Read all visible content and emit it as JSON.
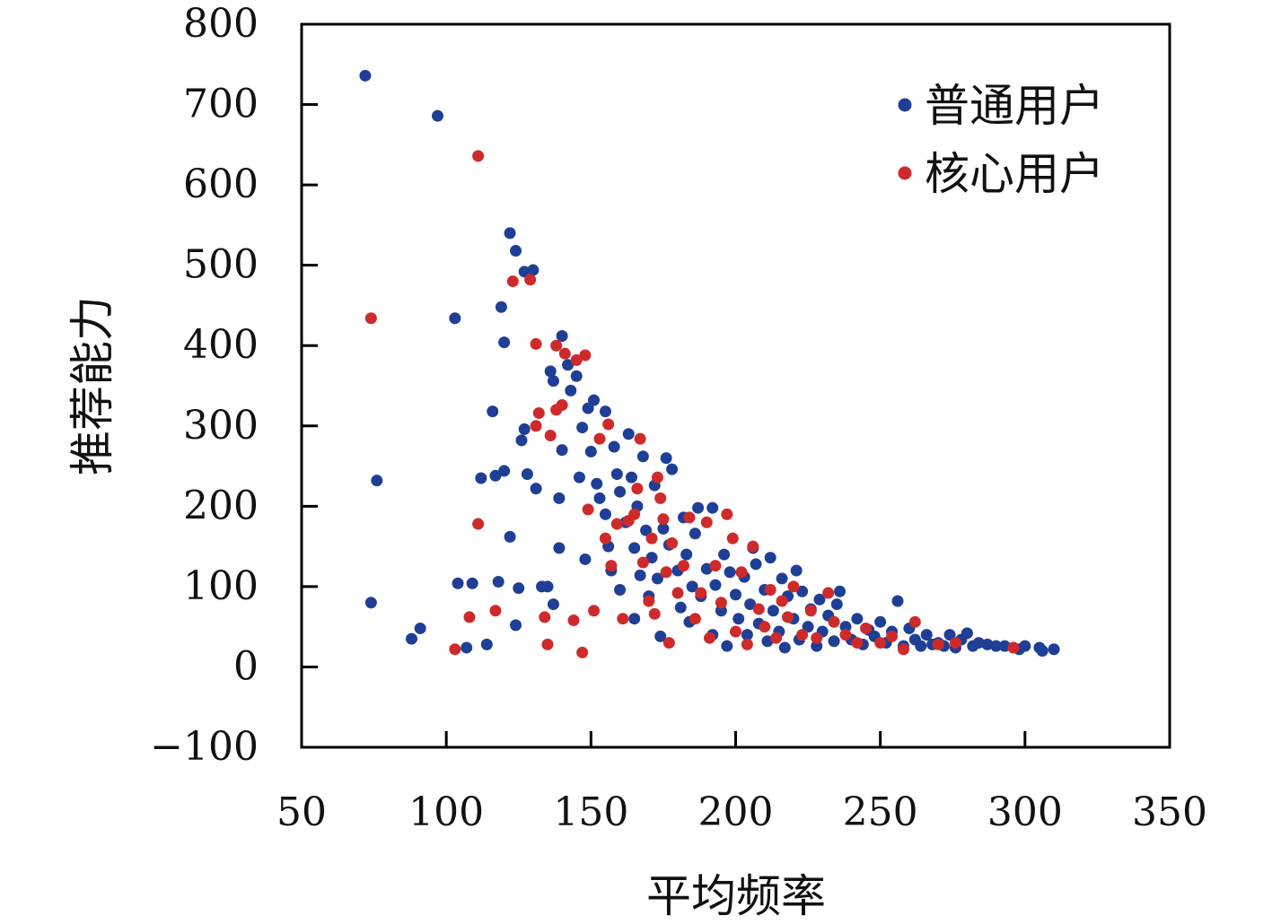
{
  "chart_data": {
    "type": "scatter",
    "xlabel": "平均频率",
    "ylabel": "推荐能力",
    "xlim": [
      50,
      350
    ],
    "ylim": [
      -100,
      800
    ],
    "xticks": [
      50,
      100,
      150,
      200,
      250,
      300,
      350
    ],
    "yticks": [
      -100,
      0,
      100,
      200,
      300,
      400,
      500,
      600,
      700,
      800
    ],
    "xtick_labels": [
      "50",
      "100",
      "150",
      "200",
      "250",
      "300",
      "350"
    ],
    "ytick_labels": [
      "−100",
      "0",
      "100",
      "200",
      "300",
      "400",
      "500",
      "600",
      "700",
      "800"
    ],
    "grid": false,
    "legend_position": "top-right",
    "series": [
      {
        "name": "普通用户",
        "color": "#1f3f96",
        "points": [
          [
            72,
            736
          ],
          [
            97,
            686
          ],
          [
            76,
            232
          ],
          [
            74,
            80
          ],
          [
            88,
            35
          ],
          [
            91,
            48
          ],
          [
            103,
            434
          ],
          [
            104,
            104
          ],
          [
            109,
            104
          ],
          [
            107,
            24
          ],
          [
            112,
            235
          ],
          [
            114,
            28
          ],
          [
            116,
            318
          ],
          [
            117,
            238
          ],
          [
            118,
            106
          ],
          [
            119,
            448
          ],
          [
            120,
            404
          ],
          [
            120,
            244
          ],
          [
            122,
            540
          ],
          [
            122,
            162
          ],
          [
            124,
            518
          ],
          [
            124,
            52
          ],
          [
            125,
            98
          ],
          [
            126,
            282
          ],
          [
            127,
            296
          ],
          [
            127,
            492
          ],
          [
            128,
            240
          ],
          [
            130,
            494
          ],
          [
            131,
            222
          ],
          [
            133,
            100
          ],
          [
            135,
            100
          ],
          [
            136,
            368
          ],
          [
            137,
            356
          ],
          [
            137,
            78
          ],
          [
            139,
            148
          ],
          [
            139,
            210
          ],
          [
            140,
            412
          ],
          [
            140,
            270
          ],
          [
            142,
            376
          ],
          [
            143,
            344
          ],
          [
            145,
            362
          ],
          [
            146,
            236
          ],
          [
            147,
            298
          ],
          [
            148,
            134
          ],
          [
            149,
            322
          ],
          [
            150,
            268
          ],
          [
            151,
            332
          ],
          [
            152,
            228
          ],
          [
            153,
            210
          ],
          [
            155,
            318
          ],
          [
            155,
            190
          ],
          [
            156,
            150
          ],
          [
            157,
            120
          ],
          [
            158,
            274
          ],
          [
            159,
            240
          ],
          [
            160,
            218
          ],
          [
            160,
            96
          ],
          [
            162,
            180
          ],
          [
            163,
            290
          ],
          [
            164,
            236
          ],
          [
            165,
            148
          ],
          [
            165,
            60
          ],
          [
            166,
            200
          ],
          [
            167,
            114
          ],
          [
            168,
            262
          ],
          [
            169,
            170
          ],
          [
            170,
            88
          ],
          [
            171,
            136
          ],
          [
            172,
            226
          ],
          [
            173,
            110
          ],
          [
            174,
            38
          ],
          [
            175,
            172
          ],
          [
            176,
            260
          ],
          [
            177,
            152
          ],
          [
            178,
            246
          ],
          [
            180,
            120
          ],
          [
            181,
            74
          ],
          [
            182,
            186
          ],
          [
            183,
            140
          ],
          [
            184,
            56
          ],
          [
            185,
            100
          ],
          [
            186,
            166
          ],
          [
            187,
            198
          ],
          [
            188,
            88
          ],
          [
            190,
            122
          ],
          [
            192,
            198
          ],
          [
            192,
            40
          ],
          [
            193,
            102
          ],
          [
            195,
            70
          ],
          [
            196,
            140
          ],
          [
            197,
            26
          ],
          [
            198,
            118
          ],
          [
            200,
            90
          ],
          [
            201,
            60
          ],
          [
            203,
            112
          ],
          [
            204,
            40
          ],
          [
            205,
            78
          ],
          [
            206,
            148
          ],
          [
            207,
            128
          ],
          [
            208,
            54
          ],
          [
            210,
            96
          ],
          [
            211,
            32
          ],
          [
            212,
            136
          ],
          [
            213,
            70
          ],
          [
            215,
            44
          ],
          [
            216,
            110
          ],
          [
            217,
            24
          ],
          [
            218,
            88
          ],
          [
            220,
            60
          ],
          [
            221,
            120
          ],
          [
            222,
            34
          ],
          [
            223,
            94
          ],
          [
            225,
            50
          ],
          [
            226,
            72
          ],
          [
            228,
            26
          ],
          [
            229,
            84
          ],
          [
            230,
            44
          ],
          [
            232,
            64
          ],
          [
            234,
            32
          ],
          [
            235,
            78
          ],
          [
            236,
            94
          ],
          [
            238,
            50
          ],
          [
            240,
            34
          ],
          [
            242,
            60
          ],
          [
            244,
            28
          ],
          [
            246,
            46
          ],
          [
            248,
            38
          ],
          [
            250,
            56
          ],
          [
            252,
            30
          ],
          [
            254,
            44
          ],
          [
            256,
            82
          ],
          [
            258,
            26
          ],
          [
            260,
            48
          ],
          [
            262,
            34
          ],
          [
            264,
            26
          ],
          [
            266,
            40
          ],
          [
            268,
            28
          ],
          [
            270,
            30
          ],
          [
            272,
            26
          ],
          [
            274,
            40
          ],
          [
            276,
            24
          ],
          [
            278,
            34
          ],
          [
            280,
            42
          ],
          [
            282,
            26
          ],
          [
            284,
            30
          ],
          [
            287,
            28
          ],
          [
            290,
            26
          ],
          [
            293,
            26
          ],
          [
            296,
            24
          ],
          [
            298,
            22
          ],
          [
            300,
            26
          ],
          [
            305,
            24
          ],
          [
            306,
            20
          ],
          [
            310,
            22
          ]
        ]
      },
      {
        "name": "核心用户",
        "color": "#cf2a2a",
        "points": [
          [
            74,
            434
          ],
          [
            103,
            22
          ],
          [
            108,
            62
          ],
          [
            111,
            636
          ],
          [
            111,
            178
          ],
          [
            117,
            70
          ],
          [
            123,
            480
          ],
          [
            129,
            482
          ],
          [
            131,
            402
          ],
          [
            131,
            300
          ],
          [
            132,
            316
          ],
          [
            134,
            62
          ],
          [
            135,
            28
          ],
          [
            136,
            288
          ],
          [
            138,
            320
          ],
          [
            138,
            400
          ],
          [
            140,
            326
          ],
          [
            141,
            390
          ],
          [
            144,
            58
          ],
          [
            145,
            382
          ],
          [
            147,
            18
          ],
          [
            148,
            388
          ],
          [
            149,
            196
          ],
          [
            151,
            70
          ],
          [
            153,
            284
          ],
          [
            155,
            160
          ],
          [
            156,
            302
          ],
          [
            157,
            126
          ],
          [
            159,
            178
          ],
          [
            161,
            60
          ],
          [
            163,
            182
          ],
          [
            165,
            190
          ],
          [
            166,
            222
          ],
          [
            167,
            284
          ],
          [
            168,
            130
          ],
          [
            170,
            82
          ],
          [
            171,
            160
          ],
          [
            172,
            66
          ],
          [
            173,
            236
          ],
          [
            174,
            210
          ],
          [
            175,
            184
          ],
          [
            176,
            118
          ],
          [
            177,
            30
          ],
          [
            178,
            154
          ],
          [
            180,
            92
          ],
          [
            182,
            126
          ],
          [
            184,
            186
          ],
          [
            186,
            60
          ],
          [
            188,
            92
          ],
          [
            190,
            180
          ],
          [
            191,
            36
          ],
          [
            193,
            126
          ],
          [
            195,
            80
          ],
          [
            197,
            190
          ],
          [
            199,
            160
          ],
          [
            200,
            44
          ],
          [
            202,
            118
          ],
          [
            204,
            28
          ],
          [
            206,
            150
          ],
          [
            208,
            72
          ],
          [
            210,
            50
          ],
          [
            212,
            96
          ],
          [
            214,
            36
          ],
          [
            216,
            82
          ],
          [
            218,
            62
          ],
          [
            220,
            100
          ],
          [
            223,
            40
          ],
          [
            226,
            70
          ],
          [
            228,
            36
          ],
          [
            232,
            92
          ],
          [
            234,
            56
          ],
          [
            238,
            40
          ],
          [
            242,
            30
          ],
          [
            245,
            48
          ],
          [
            250,
            30
          ],
          [
            254,
            38
          ],
          [
            258,
            22
          ],
          [
            262,
            56
          ],
          [
            270,
            28
          ],
          [
            276,
            30
          ],
          [
            296,
            24
          ]
        ]
      }
    ]
  }
}
